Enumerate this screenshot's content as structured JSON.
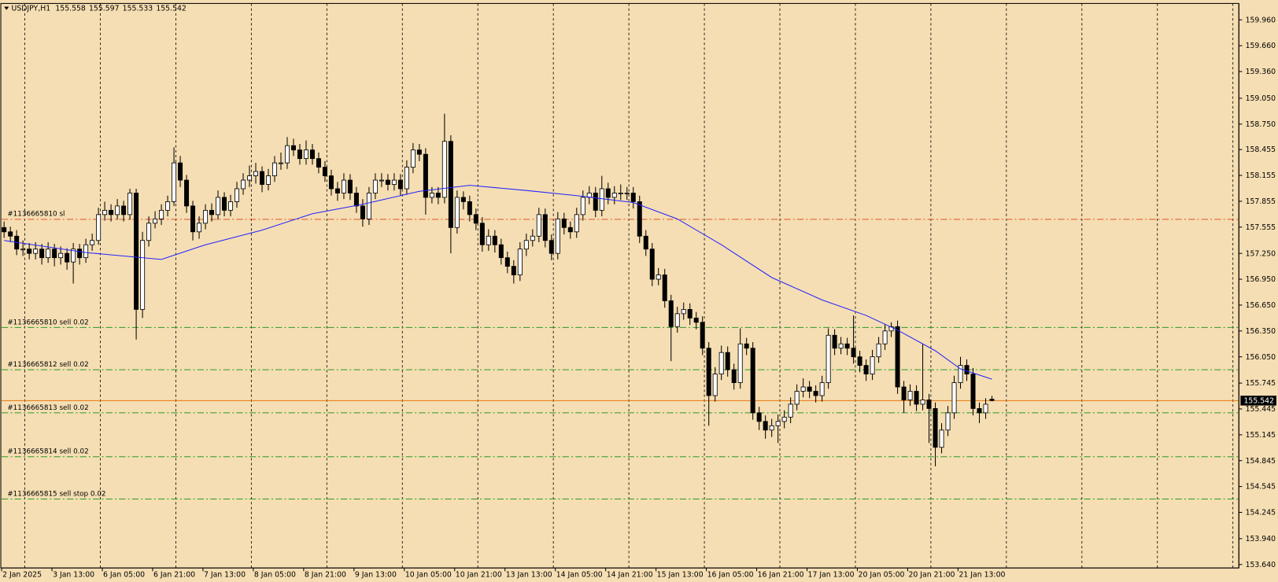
{
  "chart_data": {
    "type": "candlestick",
    "symbol": "USDJPY,H1",
    "quote": [
      155.558,
      155.597,
      155.533,
      155.542
    ],
    "ylim": [
      153.6,
      160.15
    ],
    "yticks": [
      {
        "value": 159.96,
        "label": "159.960"
      },
      {
        "value": 159.66,
        "label": "159.660"
      },
      {
        "value": 159.36,
        "label": "159.360"
      },
      {
        "value": 159.05,
        "label": "159.050"
      },
      {
        "value": 158.75,
        "label": "158.750"
      },
      {
        "value": 158.455,
        "label": "158.455"
      },
      {
        "value": 158.155,
        "label": "158.155"
      },
      {
        "value": 157.855,
        "label": "157.855"
      },
      {
        "value": 157.555,
        "label": "157.555"
      },
      {
        "value": 157.25,
        "label": "157.250"
      },
      {
        "value": 156.95,
        "label": "156.950"
      },
      {
        "value": 156.65,
        "label": "156.650"
      },
      {
        "value": 156.35,
        "label": "156.350"
      },
      {
        "value": 156.05,
        "label": "156.050"
      },
      {
        "value": 155.745,
        "label": "155.745"
      },
      {
        "value": 155.445,
        "label": "155.445"
      },
      {
        "value": 155.145,
        "label": "155.145"
      },
      {
        "value": 154.845,
        "label": "154.845"
      },
      {
        "value": 154.545,
        "label": "154.545"
      },
      {
        "value": 154.245,
        "label": "154.245"
      },
      {
        "value": 153.94,
        "label": "153.940"
      },
      {
        "value": 153.64,
        "label": "153.640"
      }
    ],
    "xticks": [
      {
        "value": 0,
        "label": "2 Jan 2025"
      },
      {
        "value": 8,
        "label": "3 Jan 13:00"
      },
      {
        "value": 16,
        "label": "6 Jan 05:00"
      },
      {
        "value": 24,
        "label": "6 Jan 21:00"
      },
      {
        "value": 32,
        "label": "7 Jan 13:00"
      },
      {
        "value": 40,
        "label": "8 Jan 05:00"
      },
      {
        "value": 48,
        "label": "8 Jan 21:00"
      },
      {
        "value": 56,
        "label": "9 Jan 13:00"
      },
      {
        "value": 64,
        "label": "10 Jan 05:00"
      },
      {
        "value": 72,
        "label": "10 Jan 21:00"
      },
      {
        "value": 80,
        "label": "13 Jan 13:00"
      },
      {
        "value": 88,
        "label": "14 Jan 05:00"
      },
      {
        "value": 96,
        "label": "14 Jan 21:00"
      },
      {
        "value": 104,
        "label": "15 Jan 13:00"
      },
      {
        "value": 112,
        "label": "16 Jan 05:00"
      },
      {
        "value": 120,
        "label": "16 Jan 21:00"
      },
      {
        "value": 128,
        "label": "17 Jan 13:00"
      },
      {
        "value": 136,
        "label": "20 Jan 05:00"
      },
      {
        "value": 144,
        "label": "20 Jan 21:00"
      },
      {
        "value": 152,
        "label": "21 Jan 13:00"
      }
    ],
    "up_color": "#ffffff",
    "down_color": "#000000",
    "ohlc": [
      [
        157.55,
        157.62,
        157.43,
        157.5
      ],
      [
        157.5,
        157.56,
        157.38,
        157.45
      ],
      [
        157.45,
        157.52,
        157.23,
        157.3
      ],
      [
        157.3,
        157.4,
        157.22,
        157.3
      ],
      [
        157.3,
        157.37,
        157.18,
        157.25
      ],
      [
        157.25,
        157.38,
        157.18,
        157.3
      ],
      [
        157.3,
        157.36,
        157.12,
        157.2
      ],
      [
        157.2,
        157.38,
        157.14,
        157.3
      ],
      [
        157.3,
        157.36,
        157.1,
        157.2
      ],
      [
        157.2,
        157.33,
        157.12,
        157.25
      ],
      [
        157.25,
        157.31,
        157.06,
        157.15
      ],
      [
        157.15,
        157.37,
        156.9,
        157.3
      ],
      [
        157.3,
        157.36,
        157.12,
        157.2
      ],
      [
        157.2,
        157.42,
        157.14,
        157.35
      ],
      [
        157.35,
        157.48,
        157.28,
        157.4
      ],
      [
        157.4,
        157.78,
        157.35,
        157.7
      ],
      [
        157.7,
        157.85,
        157.63,
        157.75
      ],
      [
        157.75,
        157.82,
        157.62,
        157.7
      ],
      [
        157.7,
        157.88,
        157.64,
        157.8
      ],
      [
        157.8,
        157.86,
        157.62,
        157.7
      ],
      [
        157.7,
        158.0,
        157.64,
        157.95
      ],
      [
        157.95,
        158.0,
        156.25,
        156.6
      ],
      [
        156.6,
        157.5,
        156.5,
        157.4
      ],
      [
        157.4,
        157.68,
        157.33,
        157.6
      ],
      [
        157.6,
        157.74,
        157.54,
        157.65
      ],
      [
        157.65,
        157.82,
        157.58,
        157.75
      ],
      [
        157.75,
        157.92,
        157.68,
        157.85
      ],
      [
        157.85,
        158.48,
        157.8,
        158.3
      ],
      [
        158.3,
        158.38,
        158.02,
        158.1
      ],
      [
        158.1,
        158.16,
        157.72,
        157.8
      ],
      [
        157.8,
        157.86,
        157.4,
        157.5
      ],
      [
        157.5,
        157.68,
        157.42,
        157.6
      ],
      [
        157.6,
        157.82,
        157.53,
        157.75
      ],
      [
        157.75,
        157.83,
        157.62,
        157.7
      ],
      [
        157.7,
        157.98,
        157.64,
        157.9
      ],
      [
        157.9,
        157.96,
        157.68,
        157.75
      ],
      [
        157.75,
        157.93,
        157.68,
        157.85
      ],
      [
        157.85,
        158.08,
        157.78,
        158.0
      ],
      [
        158.0,
        158.18,
        157.93,
        158.1
      ],
      [
        158.1,
        158.27,
        158.02,
        158.15
      ],
      [
        158.15,
        158.3,
        158.06,
        158.2
      ],
      [
        158.2,
        158.26,
        157.96,
        158.05
      ],
      [
        158.05,
        158.23,
        157.98,
        158.15
      ],
      [
        158.15,
        158.38,
        158.08,
        158.3
      ],
      [
        158.3,
        158.42,
        158.22,
        158.3
      ],
      [
        158.3,
        158.6,
        158.23,
        158.5
      ],
      [
        158.5,
        158.58,
        158.38,
        158.45
      ],
      [
        158.45,
        158.52,
        158.28,
        158.35
      ],
      [
        158.35,
        158.56,
        158.28,
        158.45
      ],
      [
        158.45,
        158.52,
        158.28,
        158.35
      ],
      [
        158.35,
        158.42,
        158.18,
        158.25
      ],
      [
        158.25,
        158.32,
        158.08,
        158.15
      ],
      [
        158.15,
        158.22,
        157.92,
        158.0
      ],
      [
        158.0,
        158.08,
        157.86,
        157.95
      ],
      [
        157.95,
        158.18,
        157.88,
        158.1
      ],
      [
        158.1,
        158.17,
        157.87,
        157.95
      ],
      [
        157.95,
        158.02,
        157.72,
        157.8
      ],
      [
        157.8,
        157.88,
        157.56,
        157.65
      ],
      [
        157.65,
        158.02,
        157.58,
        157.95
      ],
      [
        157.95,
        158.18,
        157.88,
        158.1
      ],
      [
        158.1,
        158.18,
        158.02,
        158.1
      ],
      [
        158.1,
        158.17,
        157.98,
        158.05
      ],
      [
        158.05,
        158.18,
        157.98,
        158.1
      ],
      [
        158.1,
        158.17,
        157.92,
        158.0
      ],
      [
        158.0,
        158.33,
        157.93,
        158.25
      ],
      [
        158.25,
        158.53,
        158.18,
        158.45
      ],
      [
        158.45,
        158.52,
        158.32,
        158.4
      ],
      [
        158.4,
        158.47,
        157.7,
        157.9
      ],
      [
        157.9,
        158.02,
        157.83,
        157.95
      ],
      [
        157.95,
        158.02,
        157.82,
        157.9
      ],
      [
        157.9,
        158.87,
        157.83,
        158.55
      ],
      [
        158.55,
        158.62,
        157.25,
        157.55
      ],
      [
        157.55,
        157.98,
        157.48,
        157.9
      ],
      [
        157.9,
        157.97,
        157.76,
        157.85
      ],
      [
        157.85,
        157.92,
        157.62,
        157.7
      ],
      [
        157.7,
        157.77,
        157.52,
        157.6
      ],
      [
        157.6,
        157.67,
        157.27,
        157.35
      ],
      [
        157.35,
        157.53,
        157.28,
        157.45
      ],
      [
        157.45,
        157.52,
        157.26,
        157.35
      ],
      [
        157.35,
        157.42,
        157.12,
        157.2
      ],
      [
        157.2,
        157.27,
        157.02,
        157.1
      ],
      [
        157.1,
        157.17,
        156.9,
        157.0
      ],
      [
        157.0,
        157.38,
        156.93,
        157.3
      ],
      [
        157.3,
        157.48,
        157.22,
        157.4
      ],
      [
        157.4,
        157.53,
        157.33,
        157.45
      ],
      [
        157.45,
        157.78,
        157.38,
        157.7
      ],
      [
        157.7,
        157.77,
        157.32,
        157.4
      ],
      [
        157.4,
        157.47,
        157.17,
        157.25
      ],
      [
        157.25,
        157.73,
        157.18,
        157.65
      ],
      [
        157.65,
        157.72,
        157.47,
        157.55
      ],
      [
        157.55,
        157.62,
        157.42,
        157.5
      ],
      [
        157.5,
        157.78,
        157.43,
        157.7
      ],
      [
        157.7,
        157.98,
        157.63,
        157.9
      ],
      [
        157.9,
        158.03,
        157.82,
        157.95
      ],
      [
        157.95,
        158.02,
        157.67,
        157.75
      ],
      [
        157.75,
        158.15,
        157.68,
        158.0
      ],
      [
        158.0,
        158.07,
        157.82,
        157.9
      ],
      [
        157.9,
        158.03,
        157.82,
        157.95
      ],
      [
        157.95,
        158.05,
        157.87,
        157.95
      ],
      [
        157.95,
        158.02,
        157.87,
        157.95
      ],
      [
        157.95,
        158.02,
        157.77,
        157.85
      ],
      [
        157.85,
        157.92,
        157.37,
        157.45
      ],
      [
        157.45,
        157.52,
        157.22,
        157.3
      ],
      [
        157.3,
        157.37,
        156.87,
        156.95
      ],
      [
        156.95,
        157.08,
        156.88,
        157.0
      ],
      [
        157.0,
        157.07,
        156.62,
        156.7
      ],
      [
        156.7,
        156.77,
        156.0,
        156.4
      ],
      [
        156.4,
        156.63,
        156.33,
        156.55
      ],
      [
        156.55,
        156.68,
        156.48,
        156.6
      ],
      [
        156.6,
        156.67,
        156.42,
        156.5
      ],
      [
        156.5,
        156.57,
        156.37,
        156.45
      ],
      [
        156.45,
        156.52,
        156.07,
        156.15
      ],
      [
        156.15,
        156.22,
        155.25,
        155.6
      ],
      [
        155.6,
        155.93,
        155.53,
        155.85
      ],
      [
        155.85,
        156.18,
        155.78,
        156.1
      ],
      [
        156.1,
        156.17,
        155.82,
        155.9
      ],
      [
        155.9,
        155.97,
        155.67,
        155.75
      ],
      [
        155.75,
        156.38,
        155.68,
        156.2
      ],
      [
        156.2,
        156.27,
        156.07,
        156.15
      ],
      [
        156.15,
        156.22,
        155.32,
        155.4
      ],
      [
        155.4,
        155.47,
        155.2,
        155.3
      ],
      [
        155.3,
        155.37,
        155.1,
        155.2
      ],
      [
        155.2,
        155.33,
        155.12,
        155.25
      ],
      [
        155.25,
        155.38,
        155.05,
        155.3
      ],
      [
        155.3,
        155.43,
        155.22,
        155.35
      ],
      [
        155.35,
        155.58,
        155.28,
        155.5
      ],
      [
        155.5,
        155.73,
        155.43,
        155.65
      ],
      [
        155.65,
        155.8,
        155.58,
        155.7
      ],
      [
        155.7,
        155.77,
        155.57,
        155.65
      ],
      [
        155.65,
        155.72,
        155.52,
        155.6
      ],
      [
        155.6,
        155.83,
        155.53,
        155.75
      ],
      [
        155.75,
        156.38,
        155.68,
        156.3
      ],
      [
        156.3,
        156.37,
        156.07,
        156.15
      ],
      [
        156.15,
        156.28,
        156.08,
        156.2
      ],
      [
        156.2,
        156.27,
        156.07,
        156.15
      ],
      [
        156.15,
        156.53,
        155.97,
        156.05
      ],
      [
        156.05,
        156.12,
        155.87,
        155.95
      ],
      [
        155.95,
        156.02,
        155.77,
        155.85
      ],
      [
        155.85,
        156.13,
        155.78,
        156.05
      ],
      [
        156.05,
        156.28,
        155.98,
        156.2
      ],
      [
        156.2,
        156.43,
        156.13,
        156.35
      ],
      [
        156.35,
        156.45,
        156.28,
        156.4
      ],
      [
        156.4,
        156.47,
        155.62,
        155.7
      ],
      [
        155.7,
        155.77,
        155.4,
        155.55
      ],
      [
        155.55,
        155.73,
        155.48,
        155.65
      ],
      [
        155.65,
        155.72,
        155.42,
        155.5
      ],
      [
        155.5,
        156.2,
        155.43,
        155.55
      ],
      [
        155.55,
        155.62,
        155.05,
        155.45
      ],
      [
        155.45,
        155.52,
        154.78,
        155.0
      ],
      [
        155.0,
        155.28,
        154.93,
        155.2
      ],
      [
        155.2,
        155.48,
        155.13,
        155.4
      ],
      [
        155.4,
        155.83,
        155.33,
        155.75
      ],
      [
        155.75,
        156.05,
        155.68,
        155.95
      ],
      [
        155.95,
        156.02,
        155.77,
        155.85
      ],
      [
        155.85,
        155.92,
        155.37,
        155.45
      ],
      [
        155.45,
        155.52,
        155.28,
        155.4
      ],
      [
        155.4,
        155.57,
        155.33,
        155.5
      ],
      [
        155.558,
        155.597,
        155.533,
        155.542
      ]
    ],
    "ma": {
      "color": "#2424ff",
      "x": [
        0,
        13,
        25,
        32,
        41,
        49,
        57,
        66,
        74,
        83,
        91,
        100,
        107,
        114,
        122,
        130,
        137,
        142,
        148,
        152,
        157
      ],
      "values": [
        157.4,
        157.26,
        157.18,
        157.35,
        157.52,
        157.71,
        157.82,
        157.97,
        158.04,
        157.98,
        157.92,
        157.84,
        157.65,
        157.35,
        156.97,
        156.71,
        156.53,
        156.36,
        156.12,
        155.91,
        155.79
      ]
    },
    "orders": [
      {
        "label": "#1136665810 sl",
        "price": 157.645,
        "color": "#e0552a"
      },
      {
        "label": "#1136665810 sell 0.02",
        "price": 156.39,
        "color": "#2a9a2a"
      },
      {
        "label": "#1136665812 sell 0.02",
        "price": 155.9,
        "color": "#2a9a2a"
      },
      {
        "label": "#1136665813 sell 0.02",
        "price": 155.4,
        "color": "#2a9a2a"
      },
      {
        "label": "#1136665814 sell 0.02",
        "price": 154.89,
        "color": "#2a9a2a"
      },
      {
        "label": "#1136665815 sell stop 0.02",
        "price": 154.4,
        "color": "#2a9a2a"
      }
    ],
    "last": 155.542,
    "last_color": "#e8760c"
  }
}
